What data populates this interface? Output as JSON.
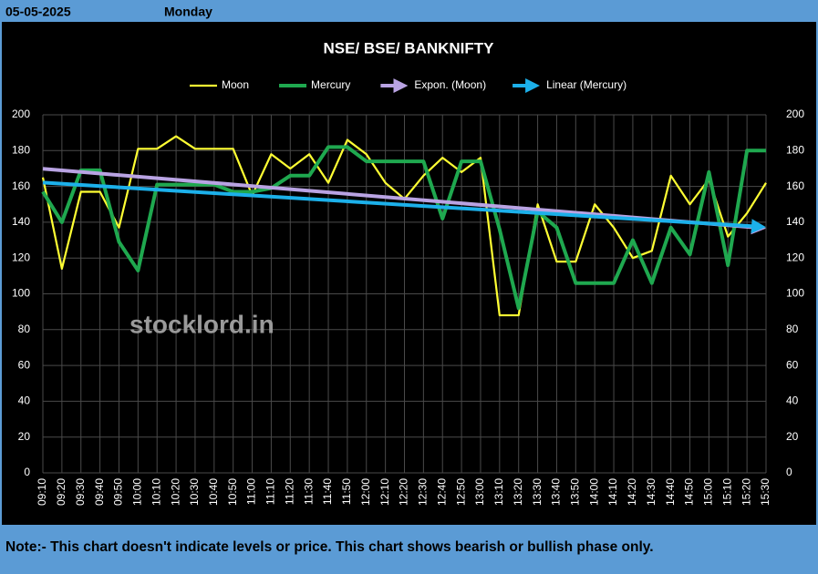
{
  "header": {
    "date": "05-05-2025",
    "day": "Monday"
  },
  "chart_data": {
    "type": "line",
    "title": "NSE/ BSE/ BANKNIFTY",
    "watermark": "stocklord.in",
    "categories": [
      "09:10",
      "09:20",
      "09:30",
      "09:40",
      "09:50",
      "10:00",
      "10:10",
      "10:20",
      "10:30",
      "10:40",
      "10:50",
      "11:00",
      "11:10",
      "11:20",
      "11:30",
      "11:40",
      "11:50",
      "12:00",
      "12:10",
      "12:20",
      "12:30",
      "12:40",
      "12:50",
      "13:00",
      "13:10",
      "13:20",
      "13:30",
      "13:40",
      "13:50",
      "14:00",
      "14:10",
      "14:20",
      "14:30",
      "14:40",
      "14:50",
      "15:00",
      "15:10",
      "15:20",
      "15:30"
    ],
    "series": [
      {
        "name": "Moon",
        "color": "#ffff33",
        "values": [
          165,
          114,
          157,
          157,
          137,
          181,
          181,
          188,
          181,
          181,
          181,
          155,
          178,
          170,
          178,
          162,
          186,
          178,
          162,
          153,
          166,
          176,
          168,
          176,
          88,
          88,
          150,
          118,
          118,
          150,
          137,
          120,
          124,
          166,
          150,
          164,
          132,
          145,
          162
        ]
      },
      {
        "name": "Mercury",
        "color": "#1fa84f",
        "values": [
          157,
          140,
          169,
          169,
          129,
          113,
          161,
          161,
          161,
          161,
          157,
          157,
          159,
          166,
          166,
          182,
          182,
          174,
          174,
          174,
          174,
          142,
          174,
          174,
          136,
          92,
          146,
          137,
          106,
          106,
          106,
          130,
          106,
          137,
          122,
          168,
          116,
          180,
          180
        ]
      }
    ],
    "trendlines": [
      {
        "name": "Expon. (Moon)",
        "of": 0,
        "kind": "exponential",
        "color": "#b9a3e3"
      },
      {
        "name": "Linear (Mercury)",
        "of": 1,
        "kind": "linear",
        "color": "#1cb0ea"
      }
    ],
    "ylim": [
      0,
      200
    ],
    "yticks": [
      0,
      20,
      40,
      60,
      80,
      100,
      120,
      140,
      160,
      180,
      200
    ],
    "y2lim": [
      0,
      200
    ],
    "y2ticks": [
      0,
      20,
      40,
      60,
      80,
      100,
      120,
      140,
      160,
      180,
      200
    ],
    "grid": true
  },
  "footer": {
    "note": "Note:- This chart doesn't indicate levels or price. This chart shows bearish or bullish phase only."
  }
}
